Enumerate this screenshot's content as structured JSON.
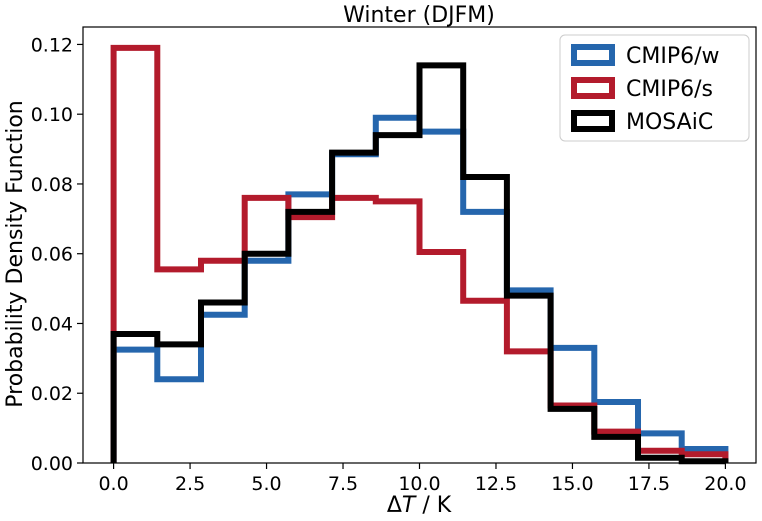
{
  "chart_data": {
    "type": "histogram",
    "title": "Winter (DJFM)",
    "xlabel_prefix": "Δ",
    "xlabel_var": "T",
    "xlabel_suffix": " / K",
    "ylabel": "Probability Density Function",
    "xlim": [
      -1.0,
      21.0
    ],
    "ylim": [
      0.0,
      0.125
    ],
    "xticks": [
      0.0,
      2.5,
      5.0,
      7.5,
      10.0,
      12.5,
      15.0,
      17.5,
      20.0
    ],
    "xtick_labels": [
      "0.0",
      "2.5",
      "5.0",
      "7.5",
      "10.0",
      "12.5",
      "15.0",
      "17.5",
      "20.0"
    ],
    "yticks": [
      0.0,
      0.02,
      0.04,
      0.06,
      0.08,
      0.1,
      0.12
    ],
    "ytick_labels": [
      "0.00",
      "0.02",
      "0.04",
      "0.06",
      "0.08",
      "0.10",
      "0.12"
    ],
    "bin_edges": [
      0.0,
      1.4286,
      2.8571,
      4.2857,
      5.7143,
      7.1429,
      8.5714,
      10.0,
      11.4286,
      12.8571,
      14.2857,
      15.7143,
      17.1429,
      18.5714,
      20.0
    ],
    "legend_position": "upper right",
    "series": [
      {
        "name": "CMIP6/w",
        "color": "#2566ad",
        "values": [
          0.0325,
          0.024,
          0.0425,
          0.058,
          0.077,
          0.0885,
          0.099,
          0.095,
          0.072,
          0.0495,
          0.033,
          0.0175,
          0.0085,
          0.004
        ]
      },
      {
        "name": "CMIP6/s",
        "color": "#b31b2c",
        "values": [
          0.119,
          0.0555,
          0.058,
          0.076,
          0.0705,
          0.076,
          0.075,
          0.0605,
          0.0465,
          0.032,
          0.0165,
          0.009,
          0.0035,
          0.0025
        ]
      },
      {
        "name": "MOSAiC",
        "color": "#000000",
        "values": [
          0.037,
          0.034,
          0.046,
          0.06,
          0.072,
          0.089,
          0.094,
          0.114,
          0.082,
          0.048,
          0.0155,
          0.0075,
          0.0015,
          0.0005
        ]
      }
    ]
  }
}
